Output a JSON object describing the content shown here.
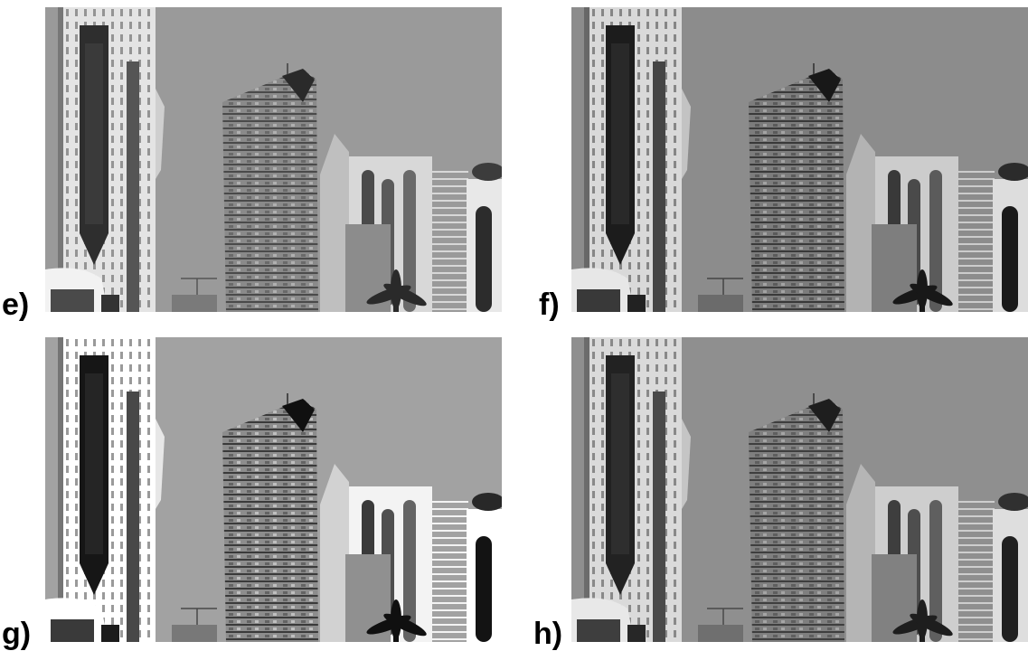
{
  "figure": {
    "panels": [
      {
        "label": "e)",
        "scene": "city-towers",
        "tone": "plain"
      },
      {
        "label": "f)",
        "scene": "city-towers",
        "tone": "darker"
      },
      {
        "label": "g)",
        "scene": "city-towers",
        "tone": "contrast"
      },
      {
        "label": "h)",
        "scene": "city-towers",
        "tone": "darker"
      }
    ]
  }
}
